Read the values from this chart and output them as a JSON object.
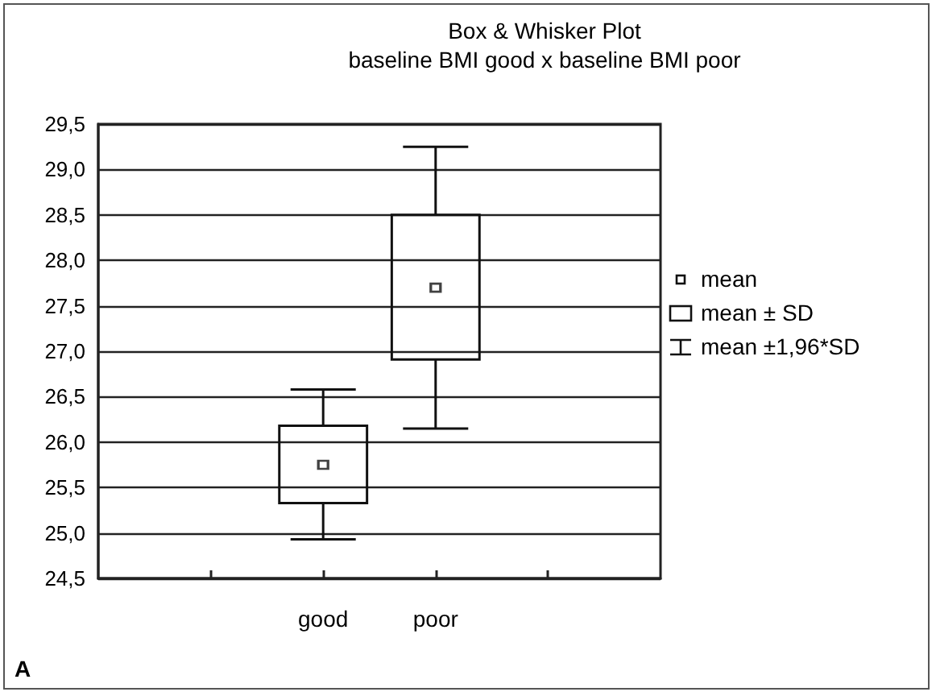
{
  "chart_data": {
    "type": "box",
    "title": "Box & Whisker Plot",
    "subtitle": "baseline BMI good x baseline BMI poor",
    "categories": [
      "good",
      "poor"
    ],
    "boxes": [
      {
        "low": 24.93,
        "q1": 25.33,
        "q3": 26.18,
        "high": 26.58,
        "mean": 25.75
      },
      {
        "low": 26.15,
        "q1": 26.91,
        "q3": 28.5,
        "high": 29.25,
        "mean": 27.7
      }
    ],
    "ylim": [
      24.5,
      29.5
    ],
    "yticks": [
      {
        "value": 24.5,
        "label": "24,5"
      },
      {
        "value": 25,
        "label": "25,0"
      },
      {
        "value": 25.5,
        "label": "25,5"
      },
      {
        "value": 26,
        "label": "26,0"
      },
      {
        "value": 26.5,
        "label": "26,5"
      },
      {
        "value": 27,
        "label": "27,0"
      },
      {
        "value": 27.5,
        "label": "27,5"
      },
      {
        "value": 28,
        "label": "28,0"
      },
      {
        "value": 28.5,
        "label": "28,5"
      },
      {
        "value": 29,
        "label": "29,0"
      },
      {
        "value": 29.5,
        "label": "29,5"
      }
    ],
    "grid": "y",
    "marker": "square",
    "annotations": [
      "mean",
      "mean ± SD",
      "mean ±1,96*SD",
      "A"
    ]
  }
}
